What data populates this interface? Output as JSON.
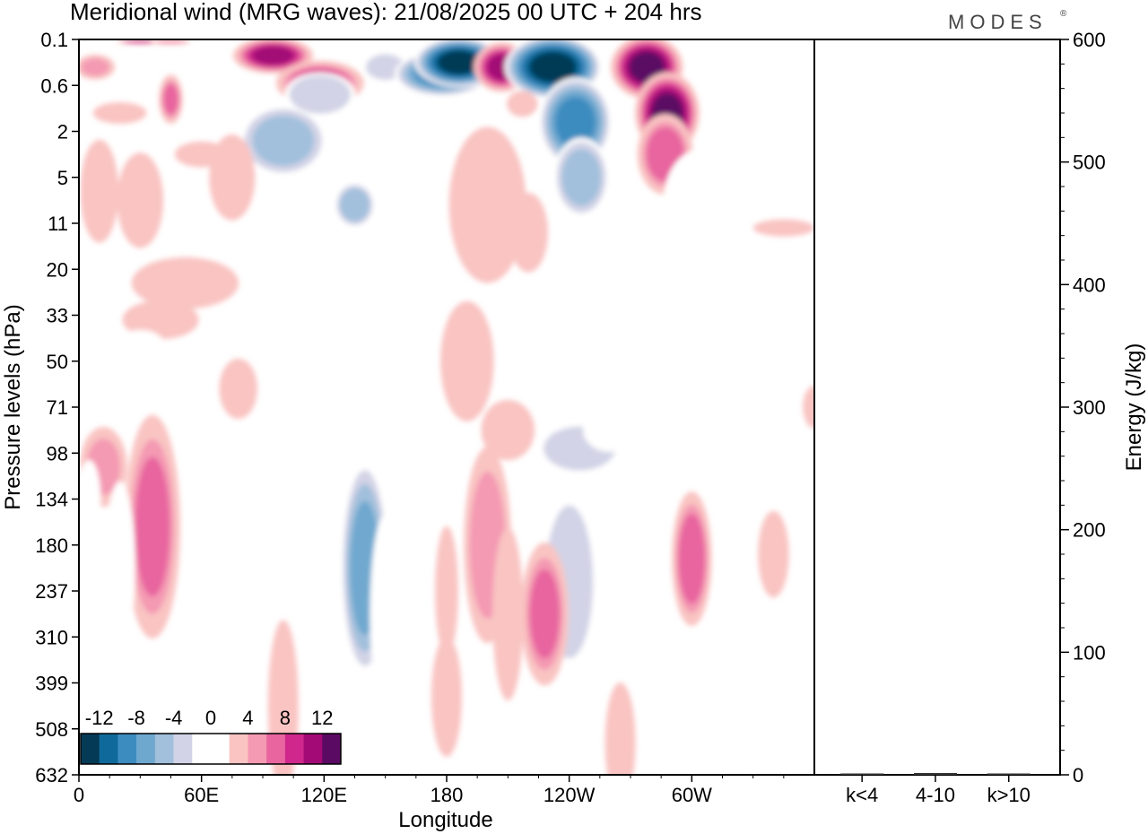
{
  "chart_data": {
    "type": "heatmap",
    "title": "Meridional wind (MRG waves):  21/08/2025  00 UTC  + 204 hrs",
    "logo": "MODES",
    "logo_mark": "®",
    "main_panel": {
      "xlabel": "Longitude",
      "ylabel": "Pressure levels (hPa)",
      "x_range_deg": [
        0,
        360
      ],
      "x_ticks": [
        {
          "deg": 0,
          "label": "0"
        },
        {
          "deg": 60,
          "label": "60E"
        },
        {
          "deg": 120,
          "label": "120E"
        },
        {
          "deg": 180,
          "label": "180"
        },
        {
          "deg": 240,
          "label": "120W"
        },
        {
          "deg": 300,
          "label": "60W"
        }
      ],
      "y_levels": [
        "0.1",
        "0.6",
        "2",
        "5",
        "11",
        "20",
        "33",
        "50",
        "71",
        "98",
        "134",
        "180",
        "237",
        "310",
        "399",
        "508",
        "632"
      ],
      "colorbar": {
        "values": [
          -14,
          -12,
          -10,
          -8,
          -6,
          -4,
          -2,
          0,
          2,
          4,
          6,
          8,
          10,
          12,
          14
        ],
        "tick_labels": [
          "-12",
          "-8",
          "-4",
          "0",
          "4",
          "8",
          "12"
        ],
        "tick_values": [
          -12,
          -8,
          -4,
          0,
          4,
          8,
          12
        ],
        "colors": [
          "#053a56",
          "#0f6a9b",
          "#3d8cc0",
          "#6fa8cf",
          "#a2c0dc",
          "#d2d3e6",
          "#ffffff",
          "#ffffff",
          "#f9c4c2",
          "#f49ab3",
          "#e8659f",
          "#cf278c",
          "#a30a76",
          "#5a0a63"
        ]
      },
      "features": [
        {
          "lon": 30,
          "lev": 0.05,
          "rx": 12,
          "ry": 0.05,
          "v": 11
        },
        {
          "lon": 45,
          "lev": 0.05,
          "rx": 10,
          "ry": 0.06,
          "v": 7
        },
        {
          "lon": 8,
          "lev": 0.6,
          "rx": 10,
          "ry": 0.28,
          "v": 6
        },
        {
          "lon": 45,
          "lev": 1.3,
          "rx": 6,
          "ry": 0.55,
          "v": 8
        },
        {
          "lon": 20,
          "lev": 1.6,
          "rx": 14,
          "ry": 0.25,
          "v": 2.5
        },
        {
          "lon": 60,
          "lev": 2.5,
          "rx": 14,
          "ry": 0.3,
          "v": 2.5
        },
        {
          "lon": 95,
          "lev": 0.35,
          "rx": 20,
          "ry": 0.4,
          "v": 12
        },
        {
          "lon": 118,
          "lev": 0.95,
          "rx": 22,
          "ry": 0.5,
          "v": 10
        },
        {
          "lon": 150,
          "lev": 0.6,
          "rx": 12,
          "ry": 0.35,
          "v": -4
        },
        {
          "lon": 178,
          "lev": 0.75,
          "rx": 24,
          "ry": 0.5,
          "v": -10
        },
        {
          "lon": 186,
          "lev": 0.5,
          "rx": 22,
          "ry": 0.55,
          "v": -14
        },
        {
          "lon": 207,
          "lev": 0.6,
          "rx": 14,
          "ry": 0.55,
          "v": 12
        },
        {
          "lon": 232,
          "lev": 0.6,
          "rx": 24,
          "ry": 0.7,
          "v": -14
        },
        {
          "lon": 217,
          "lev": 1.4,
          "rx": 8,
          "ry": 0.3,
          "v": 3
        },
        {
          "lon": 243,
          "lev": 1.8,
          "rx": 18,
          "ry": 1.0,
          "v": -10
        },
        {
          "lon": 246,
          "lev": 3.0,
          "rx": 14,
          "ry": 0.9,
          "v": -6
        },
        {
          "lon": 278,
          "lev": 0.6,
          "rx": 18,
          "ry": 0.7,
          "v": 14
        },
        {
          "lon": 288,
          "lev": 1.6,
          "rx": 16,
          "ry": 0.9,
          "v": 14
        },
        {
          "lon": 287,
          "lev": 2.5,
          "rx": 14,
          "ry": 0.9,
          "v": 9
        },
        {
          "lon": 330,
          "lev": 0.6,
          "rx": 20,
          "ry": 0.3,
          "v": -3
        },
        {
          "lon": 100,
          "lev": 2.2,
          "rx": 22,
          "ry": 0.8,
          "v": -6
        },
        {
          "lon": 118,
          "lev": 1.2,
          "rx": 18,
          "ry": 0.5,
          "v": -5
        },
        {
          "lon": 135,
          "lev": 3.6,
          "rx": 10,
          "ry": 0.5,
          "v": -7
        },
        {
          "lon": 125,
          "lev": 6.0,
          "rx": 18,
          "ry": 1.1,
          "v": -3
        },
        {
          "lon": 200,
          "lev": 3.6,
          "rx": 20,
          "ry": 1.8,
          "v": 3
        },
        {
          "lon": 220,
          "lev": 4.2,
          "rx": 10,
          "ry": 0.9,
          "v": 5
        },
        {
          "lon": 190,
          "lev": 7.0,
          "rx": 14,
          "ry": 1.4,
          "v": 2.5
        },
        {
          "lon": 305,
          "lev": 3.5,
          "rx": 20,
          "ry": 1.2,
          "v": -2.5
        },
        {
          "lon": 270,
          "lev": 4.8,
          "rx": 38,
          "ry": 0.8,
          "v": -2.5
        },
        {
          "lon": 345,
          "lev": 3.2,
          "rx": 10,
          "ry": 0.6,
          "v": -2.5
        },
        {
          "lon": 30,
          "lev": 3.5,
          "rx": 12,
          "ry": 1.1,
          "v": 3
        },
        {
          "lon": 75,
          "lev": 3.0,
          "rx": 12,
          "ry": 1.0,
          "v": 2.5
        },
        {
          "lon": 10,
          "lev": 3.3,
          "rx": 10,
          "ry": 1.2,
          "v": 2.5
        },
        {
          "lon": 52,
          "lev": 5.3,
          "rx": 28,
          "ry": 0.6,
          "v": 2.5
        },
        {
          "lon": 270,
          "lev": 5.3,
          "rx": 28,
          "ry": 0.6,
          "v": -3
        },
        {
          "lon": 290,
          "lev": 7.3,
          "rx": 26,
          "ry": 1.2,
          "v": -3
        },
        {
          "lon": 345,
          "lev": 4.1,
          "rx": 16,
          "ry": 0.2,
          "v": 2.5
        },
        {
          "lon": 95,
          "lev": 5.5,
          "rx": 10,
          "ry": 0.6,
          "v": -2.5
        },
        {
          "lon": 210,
          "lev": 8.5,
          "rx": 14,
          "ry": 0.7,
          "v": 2.5
        },
        {
          "lon": 40,
          "lev": 6.1,
          "rx": 20,
          "ry": 0.45,
          "v": 2.5
        },
        {
          "lon": 280,
          "lev": 6.4,
          "rx": 10,
          "ry": 0.4,
          "v": -3
        },
        {
          "lon": 36,
          "lev": 10.6,
          "rx": 14,
          "ry": 2.5,
          "v": 8
        },
        {
          "lon": 12,
          "lev": 9.3,
          "rx": 12,
          "ry": 0.9,
          "v": 6
        },
        {
          "lon": 20,
          "lev": 11.5,
          "rx": 8,
          "ry": 2.0,
          "v": -3
        },
        {
          "lon": 75,
          "lev": 11.5,
          "rx": 8,
          "ry": 3.0,
          "v": -2.5
        },
        {
          "lon": 140,
          "lev": 11.5,
          "rx": 12,
          "ry": 2.4,
          "v": -8
        },
        {
          "lon": 120,
          "lev": 10.0,
          "rx": 8,
          "ry": 1.2,
          "v": -3
        },
        {
          "lon": 150,
          "lev": 12.5,
          "rx": 8,
          "ry": 2.3,
          "v": -3
        },
        {
          "lon": 200,
          "lev": 11.0,
          "rx": 12,
          "ry": 2.2,
          "v": 7
        },
        {
          "lon": 180,
          "lev": 12.0,
          "rx": 6,
          "ry": 1.5,
          "v": 3
        },
        {
          "lon": 240,
          "lev": 11.8,
          "rx": 14,
          "ry": 2.0,
          "v": -5
        },
        {
          "lon": 245,
          "lev": 8.9,
          "rx": 22,
          "ry": 0.6,
          "v": -4
        },
        {
          "lon": 260,
          "lev": 8.5,
          "rx": 14,
          "ry": 0.5,
          "v": -3
        },
        {
          "lon": 228,
          "lev": 12.5,
          "rx": 12,
          "ry": 1.6,
          "v": 8
        },
        {
          "lon": 210,
          "lev": 12.5,
          "rx": 8,
          "ry": 2.0,
          "v": 3
        },
        {
          "lon": 300,
          "lev": 11.3,
          "rx": 10,
          "ry": 1.5,
          "v": 9
        },
        {
          "lon": 280,
          "lev": 12.5,
          "rx": 6,
          "ry": 2.0,
          "v": -3
        },
        {
          "lon": 320,
          "lev": 12.8,
          "rx": 10,
          "ry": 1.4,
          "v": -3
        },
        {
          "lon": 340,
          "lev": 11.2,
          "rx": 8,
          "ry": 1.0,
          "v": 3
        },
        {
          "lon": 355,
          "lev": 9.5,
          "rx": 8,
          "ry": 1.3,
          "v": -3
        },
        {
          "lon": 180,
          "lev": 14.3,
          "rx": 8,
          "ry": 1.4,
          "v": 2.5
        },
        {
          "lon": 100,
          "lev": 14.5,
          "rx": 8,
          "ry": 2.0,
          "v": 2.5
        },
        {
          "lon": 265,
          "lev": 15.3,
          "rx": 8,
          "ry": 1.4,
          "v": 2.5
        },
        {
          "lon": 350,
          "lev": 15.5,
          "rx": 8,
          "ry": 1.5,
          "v": -3
        },
        {
          "lon": 5,
          "lev": 10.0,
          "rx": 6,
          "ry": 0.9,
          "v": -3
        },
        {
          "lon": 360,
          "lev": 8.0,
          "rx": 6,
          "ry": 0.5,
          "v": 2.5
        },
        {
          "lon": 78,
          "lev": 7.6,
          "rx": 10,
          "ry": 0.7,
          "v": 2.5
        },
        {
          "lon": 30,
          "lev": 6.6,
          "rx": 12,
          "ry": 0.3,
          "v": -2.5
        }
      ]
    },
    "side_panel": {
      "type": "bar",
      "ylabel": "Energy (J/kg)",
      "ylim": [
        0,
        600
      ],
      "y_ticks": [
        0,
        100,
        200,
        300,
        400,
        500,
        600
      ],
      "categories": [
        "k<4",
        "4-10",
        "k>10"
      ],
      "values": [
        0.5,
        1.5,
        0.2
      ]
    }
  }
}
